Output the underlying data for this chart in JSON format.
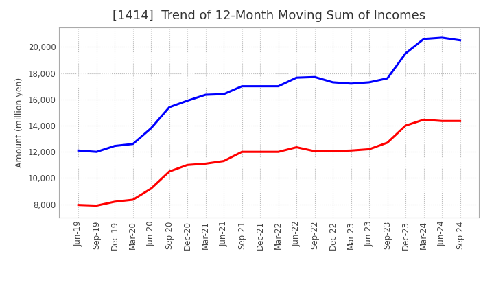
{
  "title": "[1414]  Trend of 12-Month Moving Sum of Incomes",
  "ylabel": "Amount (million yen)",
  "x_labels": [
    "Jun-19",
    "Sep-19",
    "Dec-19",
    "Mar-20",
    "Jun-20",
    "Sep-20",
    "Dec-20",
    "Mar-21",
    "Jun-21",
    "Sep-21",
    "Dec-21",
    "Mar-22",
    "Jun-22",
    "Sep-22",
    "Dec-22",
    "Mar-23",
    "Jun-23",
    "Sep-23",
    "Dec-23",
    "Mar-24",
    "Jun-24",
    "Sep-24"
  ],
  "ordinary_income": [
    12100,
    12000,
    12450,
    12600,
    13800,
    15400,
    15900,
    16350,
    16400,
    17000,
    17000,
    17000,
    17650,
    17700,
    17300,
    17200,
    17300,
    17600,
    19500,
    20600,
    20700,
    20500
  ],
  "net_income": [
    7950,
    7900,
    8200,
    8350,
    9200,
    10500,
    11000,
    11100,
    11300,
    12000,
    12000,
    12000,
    12350,
    12050,
    12050,
    12100,
    12200,
    12700,
    14000,
    14450,
    14350,
    14350
  ],
  "ordinary_color": "#0000FF",
  "net_color": "#FF0000",
  "ylim": [
    7000,
    21500
  ],
  "yticks": [
    8000,
    10000,
    12000,
    14000,
    16000,
    18000,
    20000
  ],
  "background_color": "#FFFFFF",
  "plot_bg_color": "#FFFFFF",
  "grid_color": "#BBBBBB",
  "title_fontsize": 13,
  "axis_fontsize": 9,
  "tick_fontsize": 8.5,
  "legend_fontsize": 10,
  "linewidth": 2.2
}
